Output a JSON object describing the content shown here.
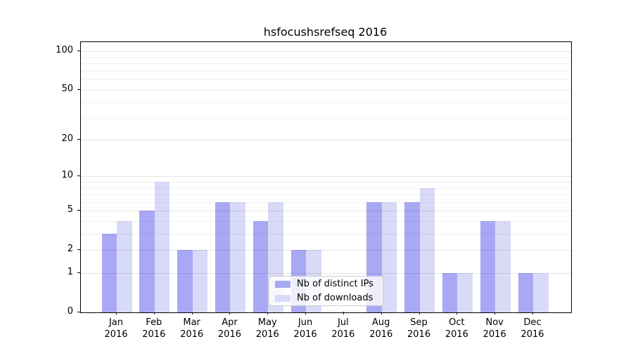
{
  "chart_data": {
    "type": "bar",
    "title": "hsfocushsrefseq 2016",
    "x_ticks": [
      {
        "month": "Jan",
        "year": "2016"
      },
      {
        "month": "Feb",
        "year": "2016"
      },
      {
        "month": "Mar",
        "year": "2016"
      },
      {
        "month": "Apr",
        "year": "2016"
      },
      {
        "month": "May",
        "year": "2016"
      },
      {
        "month": "Jun",
        "year": "2016"
      },
      {
        "month": "Jul",
        "year": "2016"
      },
      {
        "month": "Aug",
        "year": "2016"
      },
      {
        "month": "Sep",
        "year": "2016"
      },
      {
        "month": "Oct",
        "year": "2016"
      },
      {
        "month": "Nov",
        "year": "2016"
      },
      {
        "month": "Dec",
        "year": "2016"
      }
    ],
    "series": [
      {
        "name": "Nb of distinct IPs",
        "color": "#a8a8f5",
        "values": [
          3,
          5,
          2,
          6,
          4,
          2,
          0,
          6,
          6,
          1,
          4,
          1
        ]
      },
      {
        "name": "Nb of downloads",
        "color": "#d9d9f8",
        "values": [
          4,
          9,
          2,
          6,
          6,
          2,
          0,
          6,
          8,
          1,
          4,
          1
        ]
      }
    ],
    "yticks": [
      0,
      1,
      2,
      5,
      10,
      20,
      50,
      100
    ],
    "yticks_minor": [
      3,
      4,
      6,
      7,
      8,
      9,
      30,
      40,
      60,
      70,
      80,
      90
    ],
    "ylim": [
      0,
      117
    ],
    "scale": "log1p",
    "grid": true,
    "legend_position": "lower-center-right"
  }
}
